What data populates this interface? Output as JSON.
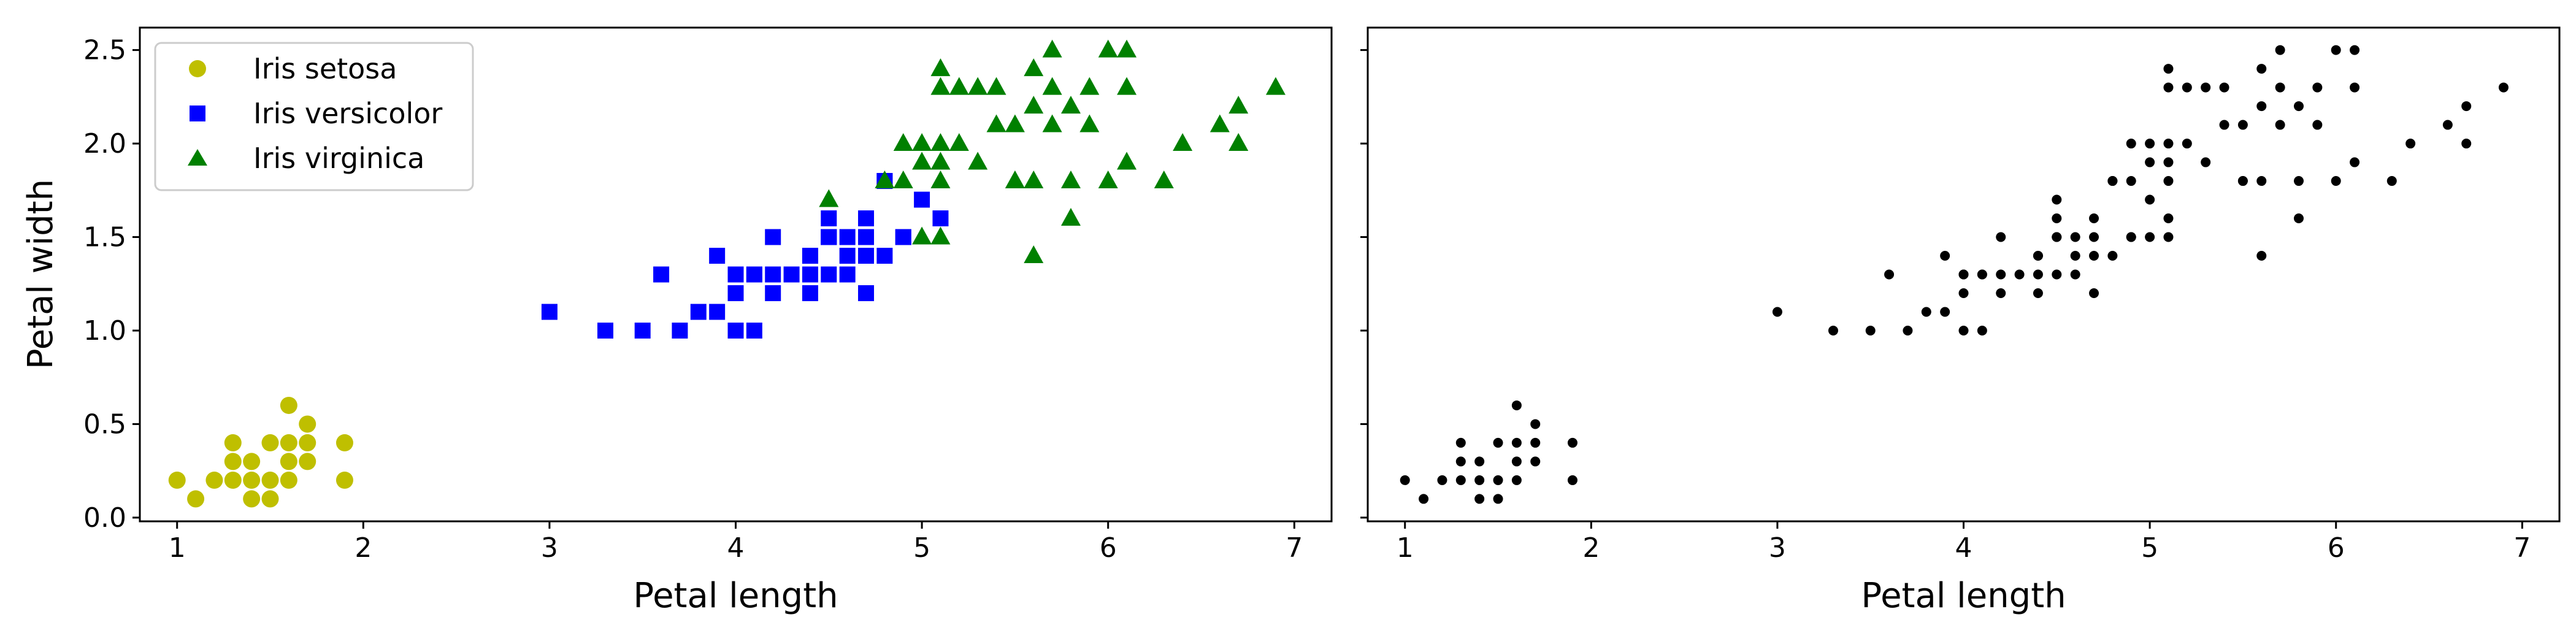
{
  "chart_data": [
    {
      "type": "scatter",
      "title": "",
      "xlabel": "Petal length",
      "ylabel": "Petal width",
      "xlim": [
        0.8,
        7.2
      ],
      "ylim": [
        -0.02,
        2.62
      ],
      "xticks": [
        1,
        2,
        3,
        4,
        5,
        6,
        7
      ],
      "yticks": [
        0.0,
        0.5,
        1.0,
        1.5,
        2.0,
        2.5
      ],
      "xtick_labels": [
        "1",
        "2",
        "3",
        "4",
        "5",
        "6",
        "7"
      ],
      "ytick_labels": [
        "0.0",
        "0.5",
        "1.0",
        "1.5",
        "2.0",
        "2.5"
      ],
      "grid": false,
      "legend": "upper-left",
      "series": [
        {
          "name": "Iris setosa",
          "marker": "circle",
          "color": "#bfbf00",
          "points": [
            [
              1.4,
              0.2
            ],
            [
              1.3,
              0.2
            ],
            [
              1.5,
              0.2
            ],
            [
              1.7,
              0.4
            ],
            [
              1.4,
              0.3
            ],
            [
              1.5,
              0.1
            ],
            [
              1.6,
              0.2
            ],
            [
              1.1,
              0.1
            ],
            [
              1.2,
              0.2
            ],
            [
              1.3,
              0.4
            ],
            [
              1.0,
              0.2
            ],
            [
              1.7,
              0.5
            ],
            [
              1.9,
              0.2
            ],
            [
              1.6,
              0.4
            ],
            [
              1.5,
              0.4
            ],
            [
              1.4,
              0.1
            ],
            [
              1.6,
              0.6
            ],
            [
              1.9,
              0.4
            ],
            [
              1.3,
              0.3
            ],
            [
              1.6,
              0.3
            ],
            [
              1.7,
              0.3
            ]
          ]
        },
        {
          "name": "Iris versicolor",
          "marker": "square",
          "color": "#0000ff",
          "points": [
            [
              4.7,
              1.4
            ],
            [
              4.5,
              1.5
            ],
            [
              4.9,
              1.5
            ],
            [
              4.0,
              1.3
            ],
            [
              4.6,
              1.5
            ],
            [
              4.5,
              1.3
            ],
            [
              4.7,
              1.6
            ],
            [
              3.3,
              1.0
            ],
            [
              4.6,
              1.3
            ],
            [
              3.9,
              1.4
            ],
            [
              3.5,
              1.0
            ],
            [
              4.2,
              1.5
            ],
            [
              4.0,
              1.0
            ],
            [
              3.6,
              1.3
            ],
            [
              4.4,
              1.4
            ],
            [
              4.1,
              1.0
            ],
            [
              4.5,
              1.5
            ],
            [
              3.9,
              1.1
            ],
            [
              4.8,
              1.8
            ],
            [
              4.0,
              1.3
            ],
            [
              4.9,
              1.5
            ],
            [
              4.7,
              1.2
            ],
            [
              4.3,
              1.3
            ],
            [
              4.4,
              1.4
            ],
            [
              4.8,
              1.4
            ],
            [
              5.0,
              1.7
            ],
            [
              3.8,
              1.1
            ],
            [
              3.7,
              1.0
            ],
            [
              5.1,
              1.6
            ],
            [
              4.5,
              1.6
            ],
            [
              4.7,
              1.5
            ],
            [
              4.4,
              1.3
            ],
            [
              4.1,
              1.3
            ],
            [
              4.0,
              1.2
            ],
            [
              4.4,
              1.2
            ],
            [
              4.6,
              1.4
            ],
            [
              4.2,
              1.2
            ],
            [
              4.2,
              1.3
            ],
            [
              3.0,
              1.1
            ],
            [
              4.1,
              1.3
            ],
            [
              4.8,
              1.8
            ],
            [
              4.5,
              1.5
            ]
          ]
        },
        {
          "name": "Iris virginica",
          "marker": "triangle",
          "color": "#008000",
          "points": [
            [
              6.0,
              2.5
            ],
            [
              5.1,
              1.9
            ],
            [
              5.9,
              2.1
            ],
            [
              5.6,
              1.8
            ],
            [
              5.8,
              2.2
            ],
            [
              6.6,
              2.1
            ],
            [
              4.5,
              1.7
            ],
            [
              6.3,
              1.8
            ],
            [
              6.1,
              2.5
            ],
            [
              5.3,
              1.9
            ],
            [
              5.5,
              2.1
            ],
            [
              5.0,
              2.0
            ],
            [
              5.1,
              2.4
            ],
            [
              5.3,
              2.3
            ],
            [
              5.5,
              1.8
            ],
            [
              6.7,
              2.2
            ],
            [
              6.9,
              2.3
            ],
            [
              5.0,
              1.5
            ],
            [
              5.7,
              2.3
            ],
            [
              4.9,
              2.0
            ],
            [
              6.7,
              2.0
            ],
            [
              4.9,
              1.8
            ],
            [
              5.7,
              2.1
            ],
            [
              6.0,
              1.8
            ],
            [
              4.8,
              1.8
            ],
            [
              5.8,
              1.6
            ],
            [
              6.1,
              1.9
            ],
            [
              6.4,
              2.0
            ],
            [
              5.6,
              2.2
            ],
            [
              5.1,
              1.5
            ],
            [
              5.6,
              1.4
            ],
            [
              6.1,
              2.3
            ],
            [
              5.6,
              2.4
            ],
            [
              5.5,
              1.8
            ],
            [
              5.4,
              2.1
            ],
            [
              5.1,
              2.3
            ],
            [
              5.9,
              2.3
            ],
            [
              5.7,
              2.5
            ],
            [
              5.2,
              2.3
            ],
            [
              5.2,
              2.0
            ],
            [
              5.4,
              2.3
            ],
            [
              5.1,
              1.8
            ],
            [
              6.7,
              2.0
            ],
            [
              5.0,
              1.9
            ],
            [
              5.1,
              2.0
            ],
            [
              5.8,
              1.8
            ]
          ]
        }
      ]
    },
    {
      "type": "scatter",
      "title": "",
      "xlabel": "Petal length",
      "ylabel": "",
      "xlim": [
        0.8,
        7.2
      ],
      "ylim": [
        -0.02,
        2.62
      ],
      "xticks": [
        1,
        2,
        3,
        4,
        5,
        6,
        7
      ],
      "yticks": [
        0.0,
        0.5,
        1.0,
        1.5,
        2.0,
        2.5
      ],
      "xtick_labels": [
        "1",
        "2",
        "3",
        "4",
        "5",
        "6",
        "7"
      ],
      "ytick_labels": [],
      "grid": false,
      "legend": "none",
      "series": [
        {
          "marker": "dot",
          "color": "#000000",
          "points": [
            [
              1.4,
              0.2
            ],
            [
              1.3,
              0.2
            ],
            [
              1.5,
              0.2
            ],
            [
              1.7,
              0.4
            ],
            [
              1.4,
              0.3
            ],
            [
              1.5,
              0.1
            ],
            [
              1.6,
              0.2
            ],
            [
              1.1,
              0.1
            ],
            [
              1.2,
              0.2
            ],
            [
              1.3,
              0.4
            ],
            [
              1.0,
              0.2
            ],
            [
              1.7,
              0.5
            ],
            [
              1.9,
              0.2
            ],
            [
              1.6,
              0.4
            ],
            [
              1.5,
              0.4
            ],
            [
              1.4,
              0.1
            ],
            [
              1.6,
              0.6
            ],
            [
              1.9,
              0.4
            ],
            [
              1.3,
              0.3
            ],
            [
              1.6,
              0.3
            ],
            [
              1.7,
              0.3
            ],
            [
              4.7,
              1.4
            ],
            [
              4.5,
              1.5
            ],
            [
              4.9,
              1.5
            ],
            [
              4.0,
              1.3
            ],
            [
              4.6,
              1.5
            ],
            [
              4.5,
              1.3
            ],
            [
              4.7,
              1.6
            ],
            [
              3.3,
              1.0
            ],
            [
              4.6,
              1.3
            ],
            [
              3.9,
              1.4
            ],
            [
              3.5,
              1.0
            ],
            [
              4.2,
              1.5
            ],
            [
              4.0,
              1.0
            ],
            [
              3.6,
              1.3
            ],
            [
              4.4,
              1.4
            ],
            [
              4.1,
              1.0
            ],
            [
              4.5,
              1.5
            ],
            [
              3.9,
              1.1
            ],
            [
              4.8,
              1.8
            ],
            [
              4.0,
              1.3
            ],
            [
              4.9,
              1.5
            ],
            [
              4.7,
              1.2
            ],
            [
              4.3,
              1.3
            ],
            [
              4.4,
              1.4
            ],
            [
              4.8,
              1.4
            ],
            [
              5.0,
              1.7
            ],
            [
              3.8,
              1.1
            ],
            [
              3.7,
              1.0
            ],
            [
              5.1,
              1.6
            ],
            [
              4.5,
              1.6
            ],
            [
              4.7,
              1.5
            ],
            [
              4.4,
              1.3
            ],
            [
              4.1,
              1.3
            ],
            [
              4.0,
              1.2
            ],
            [
              4.4,
              1.2
            ],
            [
              4.6,
              1.4
            ],
            [
              4.2,
              1.2
            ],
            [
              4.2,
              1.3
            ],
            [
              3.0,
              1.1
            ],
            [
              4.1,
              1.3
            ],
            [
              6.0,
              2.5
            ],
            [
              5.1,
              1.9
            ],
            [
              5.9,
              2.1
            ],
            [
              5.6,
              1.8
            ],
            [
              5.8,
              2.2
            ],
            [
              6.6,
              2.1
            ],
            [
              4.5,
              1.7
            ],
            [
              6.3,
              1.8
            ],
            [
              6.1,
              2.5
            ],
            [
              5.3,
              1.9
            ],
            [
              5.5,
              2.1
            ],
            [
              5.0,
              2.0
            ],
            [
              5.1,
              2.4
            ],
            [
              5.3,
              2.3
            ],
            [
              5.5,
              1.8
            ],
            [
              6.7,
              2.2
            ],
            [
              6.9,
              2.3
            ],
            [
              5.0,
              1.5
            ],
            [
              5.7,
              2.3
            ],
            [
              4.9,
              2.0
            ],
            [
              6.7,
              2.0
            ],
            [
              4.9,
              1.8
            ],
            [
              5.7,
              2.1
            ],
            [
              6.0,
              1.8
            ],
            [
              4.8,
              1.8
            ],
            [
              5.8,
              1.6
            ],
            [
              6.1,
              1.9
            ],
            [
              6.4,
              2.0
            ],
            [
              5.6,
              2.2
            ],
            [
              5.1,
              1.5
            ],
            [
              5.6,
              1.4
            ],
            [
              6.1,
              2.3
            ],
            [
              5.6,
              2.4
            ],
            [
              5.5,
              1.8
            ],
            [
              5.4,
              2.1
            ],
            [
              5.1,
              2.3
            ],
            [
              5.9,
              2.3
            ],
            [
              5.7,
              2.5
            ],
            [
              5.2,
              2.3
            ],
            [
              5.2,
              2.0
            ],
            [
              5.4,
              2.3
            ],
            [
              5.1,
              1.8
            ],
            [
              5.0,
              1.9
            ],
            [
              5.1,
              2.0
            ],
            [
              5.8,
              1.8
            ]
          ]
        }
      ]
    }
  ]
}
